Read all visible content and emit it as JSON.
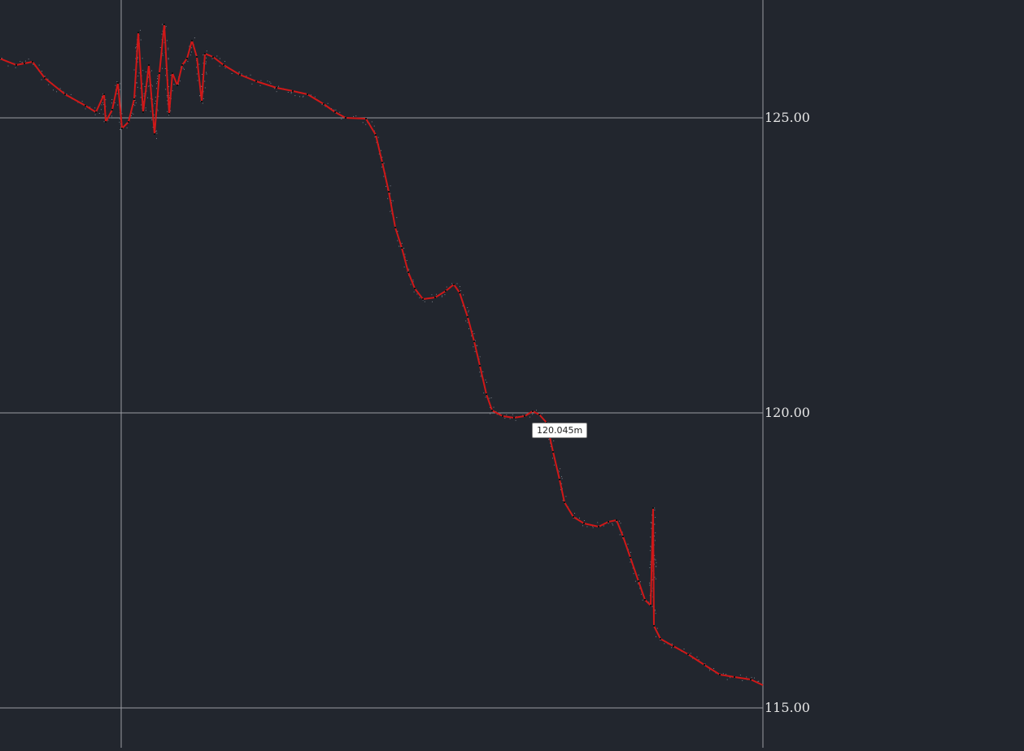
{
  "elevation_labels": [
    "125.00",
    "120.00",
    "115.00"
  ],
  "cursor_readout": "120.045m",
  "colors": {
    "background": "#22262e",
    "grid": "#9a9ca2",
    "profile": "#d01818",
    "cloud": "#7a7f88"
  }
}
